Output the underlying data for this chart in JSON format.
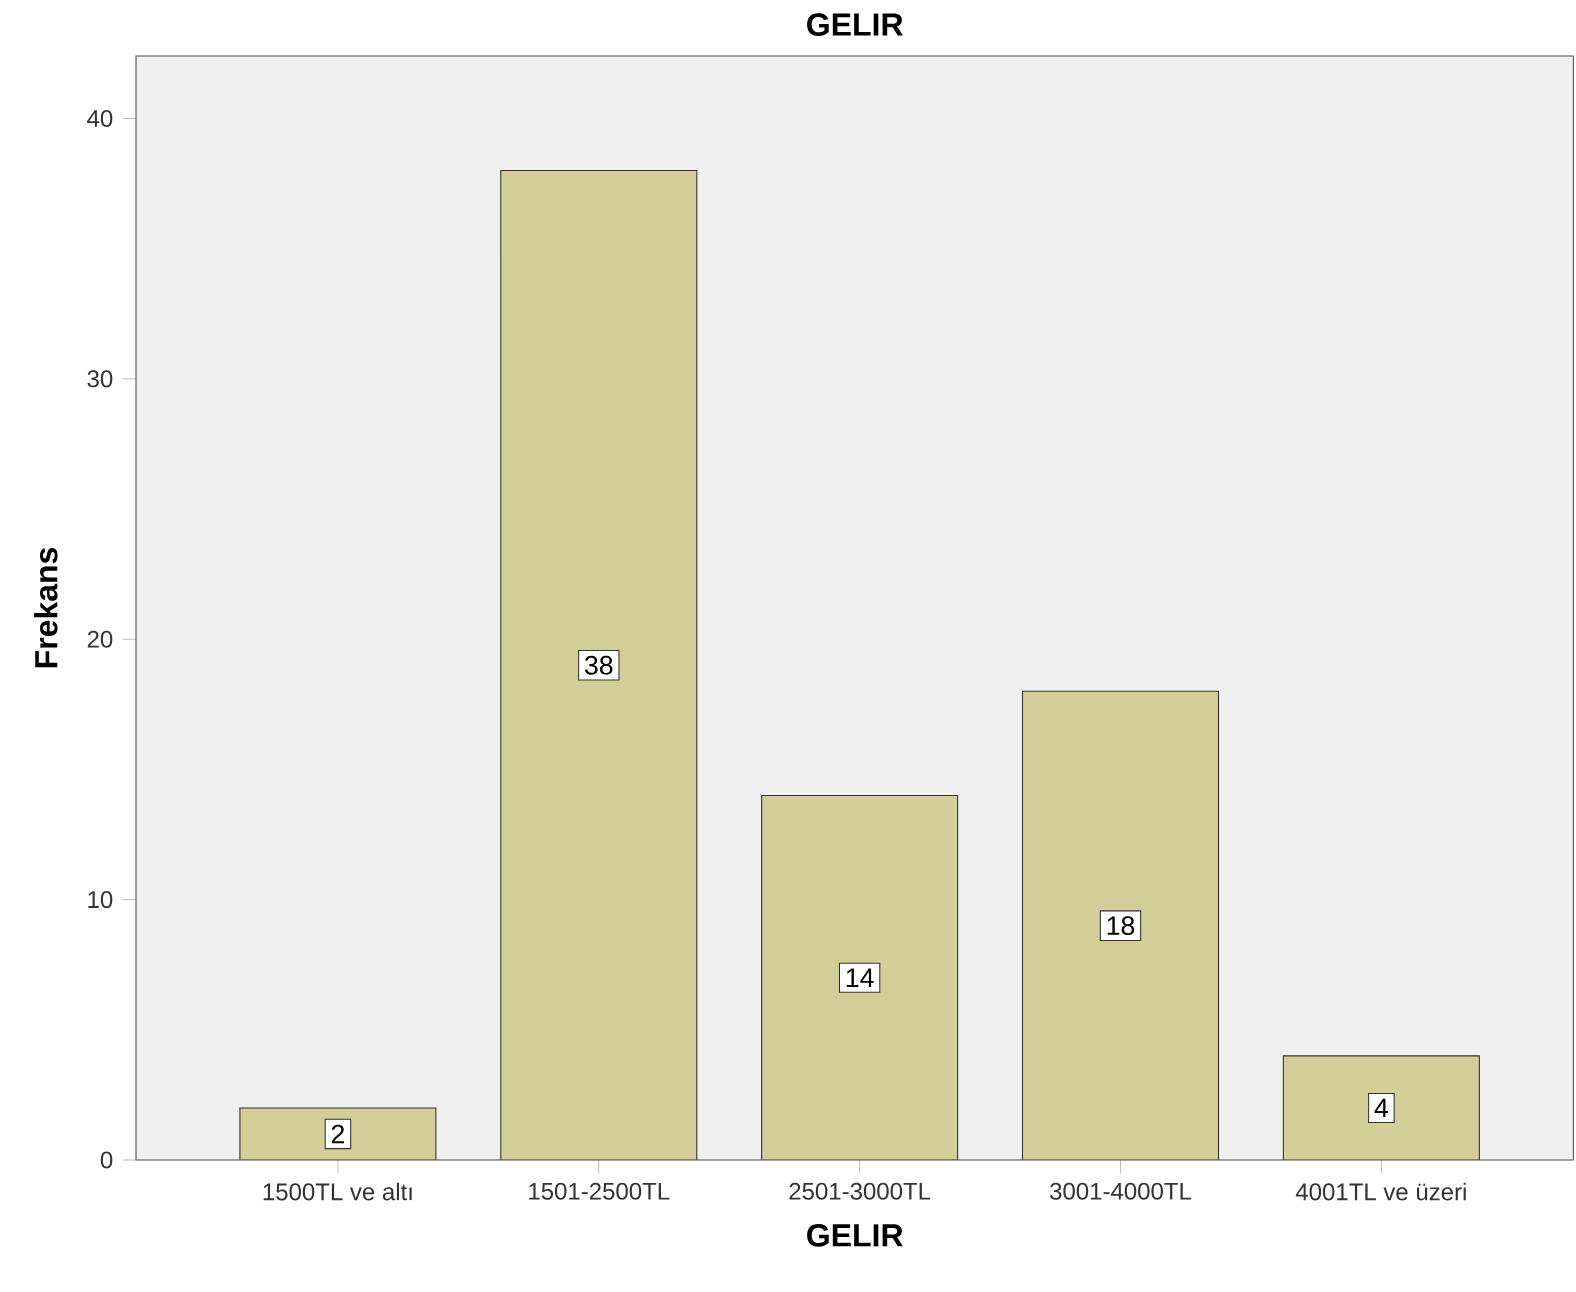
{
  "chart_data": {
    "type": "bar",
    "title": "GELIR",
    "xlabel": "GELIR",
    "ylabel": "Frekans",
    "categories": [
      "1500TL ve altı",
      "1501-2500TL",
      "2501-3000TL",
      "3001-4000TL",
      "4001TL ve üzeri"
    ],
    "values": [
      2,
      38,
      14,
      18,
      4
    ],
    "color": "#d3ce97",
    "ylim": [
      0,
      42.4
    ],
    "yticks": [
      0,
      10,
      20,
      30,
      40
    ],
    "data_labels": true
  }
}
